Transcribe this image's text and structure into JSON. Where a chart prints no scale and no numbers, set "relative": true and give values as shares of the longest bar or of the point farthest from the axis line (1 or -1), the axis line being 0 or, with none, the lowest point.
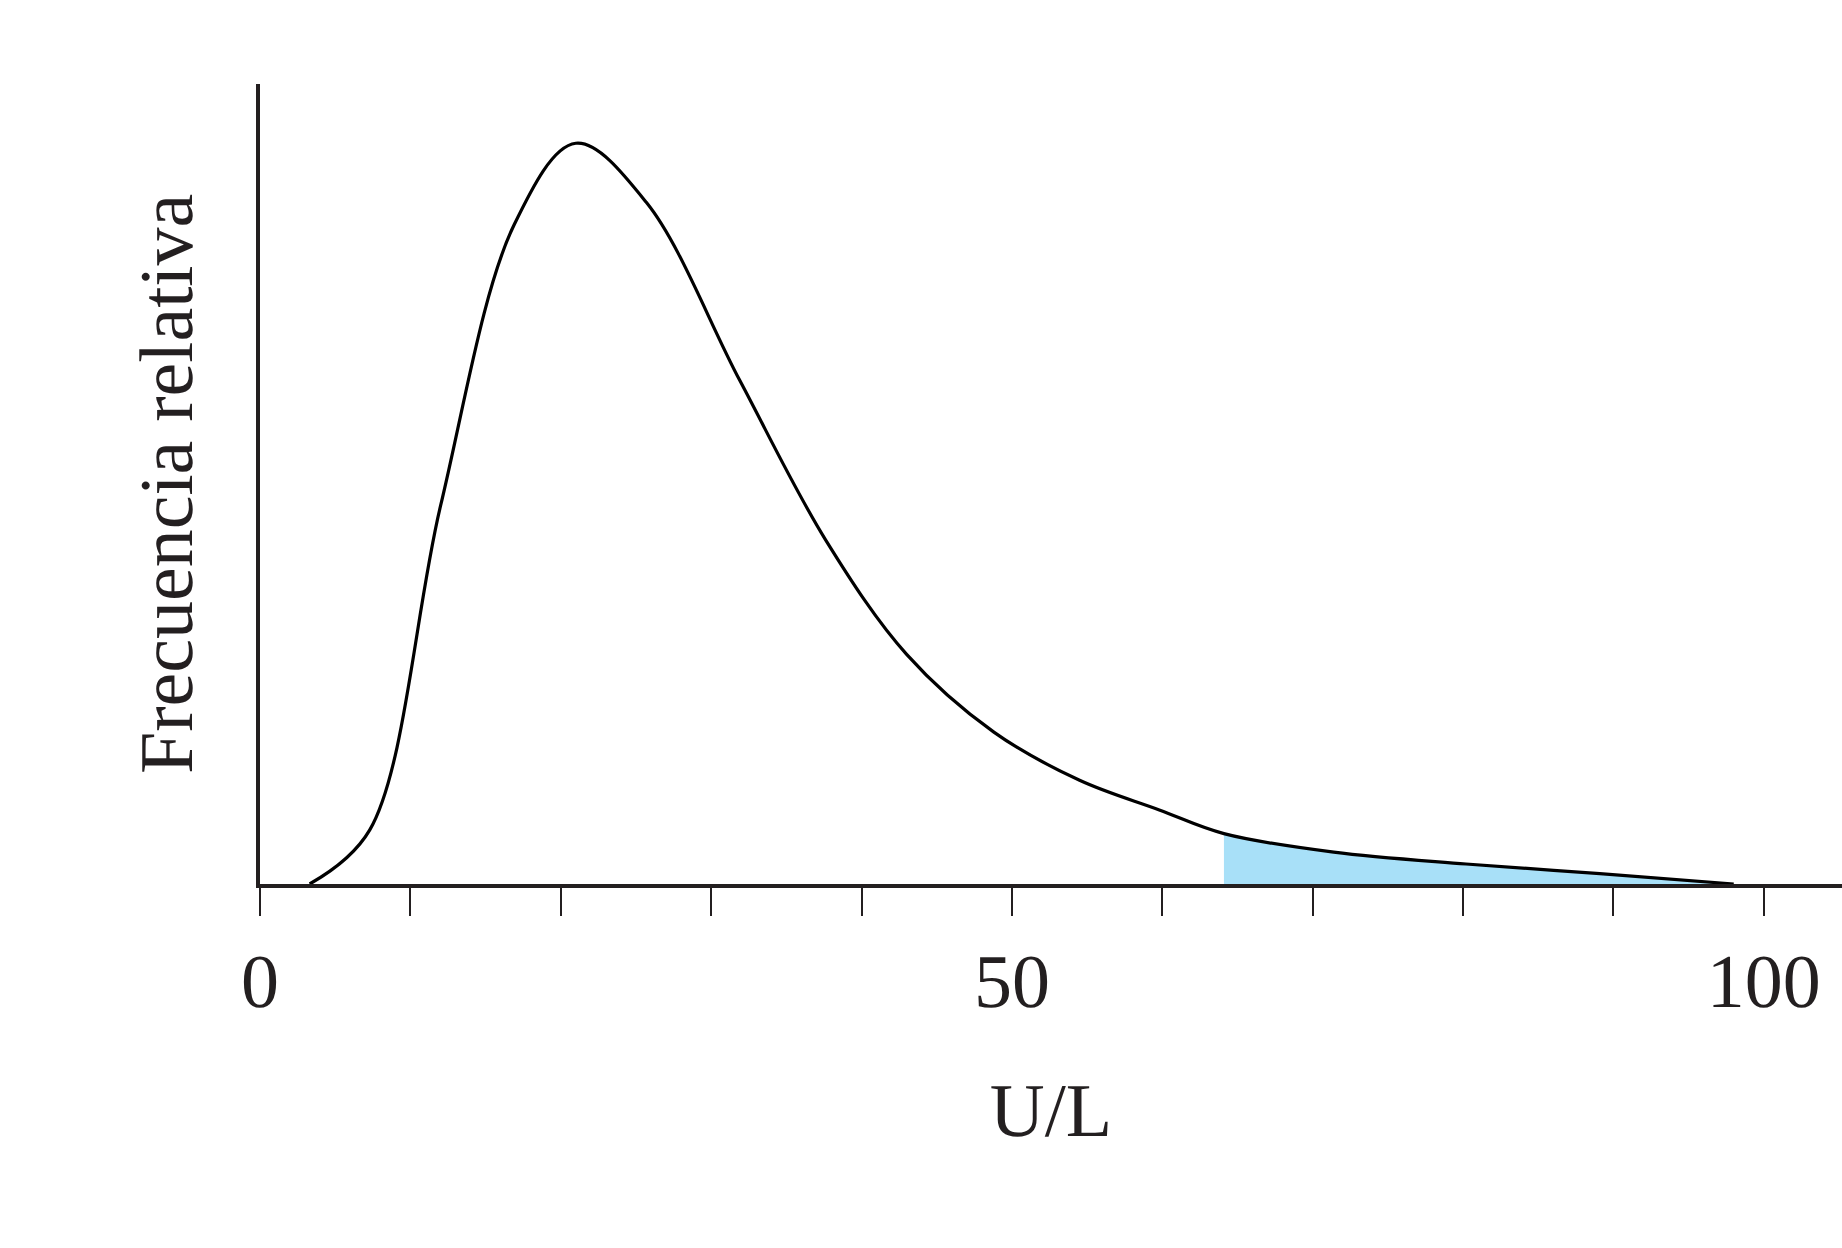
{
  "chart_data": {
    "type": "line",
    "relative": true,
    "xlabel": "U/L",
    "ylabel": "Frecuencia relativa",
    "xlim": [
      0,
      105.2
    ],
    "xticks": [
      0,
      {
        "value": 10,
        "label": null
      },
      {
        "value": 20,
        "label": null
      },
      {
        "value": 30,
        "label": null
      },
      {
        "value": 40,
        "label": null
      },
      50,
      {
        "value": 60,
        "label": null
      },
      {
        "value": 70,
        "label": null
      },
      {
        "value": 80,
        "label": null
      },
      {
        "value": 90,
        "label": null
      },
      100
    ],
    "tick_labels": "x",
    "marker": "none",
    "line_style": "solid",
    "series": [
      {
        "type": "area",
        "color": "#a8e0f8",
        "x": [
          64.1,
          71.4,
          80.2,
          89.1,
          98
        ],
        "values": [
          0.068,
          0.043,
          0.027,
          0.014,
          0
        ]
      },
      {
        "color": "#000000",
        "x": [
          3.3,
          7.3,
          12.0,
          16.9,
          21.0,
          25.7,
          31.9,
          37.6,
          43.0,
          48.8,
          54.5,
          59.8,
          64.1,
          71.4,
          80.2,
          89.1,
          98
        ],
        "values": [
          0,
          0.073,
          0.51,
          0.89,
          1,
          0.92,
          0.68,
          0.465,
          0.31,
          0.205,
          0.14,
          0.1,
          0.068,
          0.043,
          0.027,
          0.014,
          0
        ]
      }
    ]
  }
}
